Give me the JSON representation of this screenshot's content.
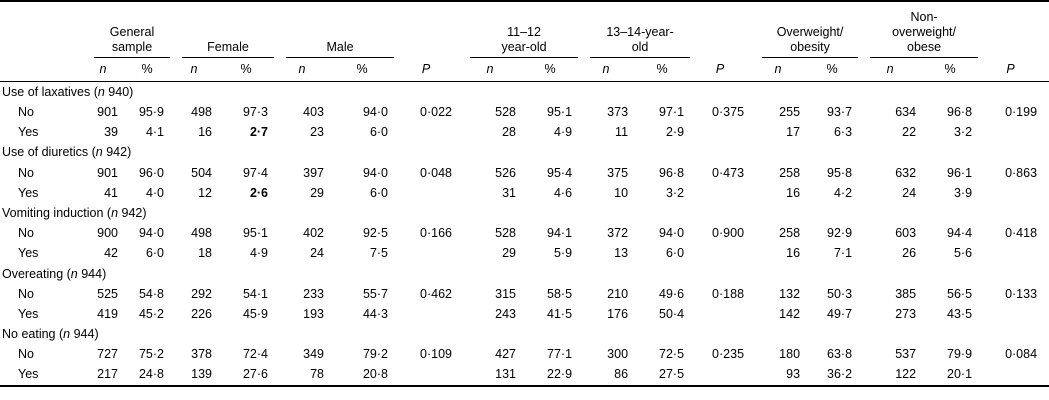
{
  "page": {
    "background": "#ffffff",
    "text_color": "#000000",
    "rule_color": "#000000"
  },
  "table": {
    "header": {
      "groups": [
        {
          "label": "General\nsample",
          "cols": [
            "n",
            "%"
          ]
        },
        {
          "label": "Female",
          "cols": [
            "n",
            "%"
          ]
        },
        {
          "label": "Male",
          "cols": [
            "n",
            "%"
          ]
        },
        {
          "label": "",
          "cols": [
            "P"
          ]
        },
        {
          "label": "11–12\nyear-old",
          "cols": [
            "n",
            "%"
          ]
        },
        {
          "label": "13–14-year-\nold",
          "cols": [
            "n",
            "%"
          ]
        },
        {
          "label": "",
          "cols": [
            "P"
          ]
        },
        {
          "label": "Overweight/\nobesity",
          "cols": [
            "n",
            "%"
          ]
        },
        {
          "label": "Non-\noverweight/\nobese",
          "cols": [
            "n",
            "%"
          ]
        },
        {
          "label": "",
          "cols": [
            "P"
          ]
        }
      ]
    },
    "sections": [
      {
        "name": "Use of laxatives",
        "n_label": "n",
        "n_value": "940",
        "rows": [
          {
            "label": "No",
            "values": [
              "901",
              "95·9",
              "498",
              "97·3",
              "403",
              "94·0",
              "0·022",
              "528",
              "95·1",
              "373",
              "97·1",
              "0·375",
              "255",
              "93·7",
              "634",
              "96·8",
              "0·199"
            ],
            "bold": []
          },
          {
            "label": "Yes",
            "values": [
              "39",
              "4·1",
              "16",
              "2·7",
              "23",
              "6·0",
              "",
              "28",
              "4·9",
              "11",
              "2·9",
              "",
              "17",
              "6·3",
              "22",
              "3·2",
              ""
            ],
            "bold": [
              3
            ]
          }
        ]
      },
      {
        "name": "Use of diuretics",
        "n_label": "n",
        "n_value": "942",
        "rows": [
          {
            "label": "No",
            "values": [
              "901",
              "96·0",
              "504",
              "97·4",
              "397",
              "94·0",
              "0·048",
              "526",
              "95·4",
              "375",
              "96·8",
              "0·473",
              "258",
              "95·8",
              "632",
              "96·1",
              "0·863"
            ],
            "bold": []
          },
          {
            "label": "Yes",
            "values": [
              "41",
              "4·0",
              "12",
              "2·6",
              "29",
              "6·0",
              "",
              "31",
              "4·6",
              "10",
              "3·2",
              "",
              "16",
              "4·2",
              "24",
              "3·9",
              ""
            ],
            "bold": [
              3
            ]
          }
        ]
      },
      {
        "name": "Vomiting induction",
        "n_label": "n",
        "n_value": "942",
        "rows": [
          {
            "label": "No",
            "values": [
              "900",
              "94·0",
              "498",
              "95·1",
              "402",
              "92·5",
              "0·166",
              "528",
              "94·1",
              "372",
              "94·0",
              "0·900",
              "258",
              "92·9",
              "603",
              "94·4",
              "0·418"
            ],
            "bold": []
          },
          {
            "label": "Yes",
            "values": [
              "42",
              "6·0",
              "18",
              "4·9",
              "24",
              "7·5",
              "",
              "29",
              "5·9",
              "13",
              "6·0",
              "",
              "16",
              "7·1",
              "26",
              "5·6",
              ""
            ],
            "bold": []
          }
        ]
      },
      {
        "name": "Overeating",
        "n_label": "n",
        "n_value": "944",
        "rows": [
          {
            "label": "No",
            "values": [
              "525",
              "54·8",
              "292",
              "54·1",
              "233",
              "55·7",
              "0·462",
              "315",
              "58·5",
              "210",
              "49·6",
              "0·188",
              "132",
              "50·3",
              "385",
              "56·5",
              "0·133"
            ],
            "bold": []
          },
          {
            "label": "Yes",
            "values": [
              "419",
              "45·2",
              "226",
              "45·9",
              "193",
              "44·3",
              "",
              "243",
              "41·5",
              "176",
              "50·4",
              "",
              "142",
              "49·7",
              "273",
              "43·5",
              ""
            ],
            "bold": []
          }
        ]
      },
      {
        "name": "No eating",
        "n_label": "n",
        "n_value": "944",
        "rows": [
          {
            "label": "No",
            "values": [
              "727",
              "75·2",
              "378",
              "72·4",
              "349",
              "79·2",
              "0·109",
              "427",
              "77·1",
              "300",
              "72·5",
              "0·235",
              "180",
              "63·8",
              "537",
              "79·9",
              "0·084"
            ],
            "bold": []
          },
          {
            "label": "Yes",
            "values": [
              "217",
              "24·8",
              "139",
              "27·6",
              "78",
              "20·8",
              "",
              "131",
              "22·9",
              "86",
              "27·5",
              "",
              "93",
              "36·2",
              "122",
              "20·1",
              ""
            ],
            "bold": []
          }
        ]
      }
    ]
  }
}
